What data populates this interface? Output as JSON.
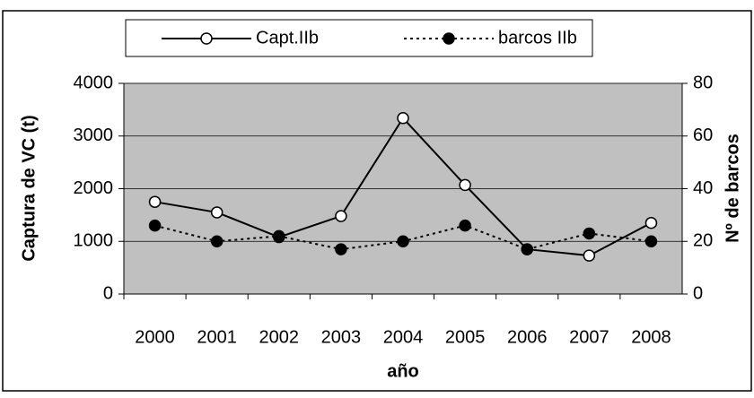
{
  "chart_data": {
    "type": "line",
    "x_label": "año",
    "y_label": "Captura de VC (t)",
    "y2_label": "Nº de barcos",
    "categories": [
      "2000",
      "2001",
      "2002",
      "2003",
      "2004",
      "2005",
      "2006",
      "2007",
      "2008"
    ],
    "series": [
      {
        "name": "Capt.IIb",
        "color": "#000000",
        "marker": "open",
        "dash": "solid",
        "values": [
          1750,
          1550,
          1080,
          1480,
          3340,
          2070,
          850,
          730,
          1350
        ]
      },
      {
        "name": "barcos IIb",
        "color": "#000000",
        "marker": "filled",
        "dash": "dotted",
        "axis": "y2",
        "values": [
          26,
          20,
          22,
          17,
          20,
          26,
          17,
          23,
          20
        ]
      }
    ],
    "ylim": [
      0,
      4000
    ],
    "yticks": [
      0,
      1000,
      2000,
      3000,
      4000
    ],
    "y2lim": [
      0,
      80
    ],
    "y2ticks": [
      0,
      20,
      40,
      60,
      80
    ],
    "grid": true,
    "plot_background": "#c0c0c0"
  }
}
